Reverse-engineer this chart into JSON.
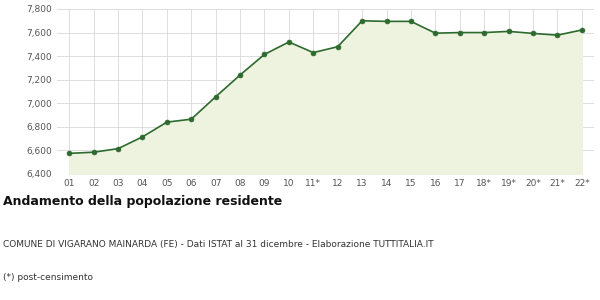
{
  "x_labels": [
    "01",
    "02",
    "03",
    "04",
    "05",
    "06",
    "07",
    "08",
    "09",
    "10",
    "11*",
    "12",
    "13",
    "14",
    "15",
    "16",
    "17",
    "18*",
    "19*",
    "20*",
    "21*",
    "22*"
  ],
  "y_values": [
    6575,
    6585,
    6615,
    6715,
    6840,
    6865,
    7055,
    7240,
    7415,
    7520,
    7430,
    7480,
    7700,
    7695,
    7695,
    7595,
    7600,
    7600,
    7610,
    7593,
    7578,
    7622
  ],
  "ylim": [
    6400,
    7800
  ],
  "yticks": [
    6400,
    6600,
    6800,
    7000,
    7200,
    7400,
    7600,
    7800
  ],
  "line_color": "#2d6a2d",
  "fill_color": "#eef3e0",
  "marker_color": "#2d6a2d",
  "bg_color": "#ffffff",
  "plot_bg_color": "#ffffff",
  "grid_color": "#d8d8d8",
  "title": "Andamento della popolazione residente",
  "subtitle": "COMUNE DI VIGARANO MAINARDA (FE) - Dati ISTAT al 31 dicembre - Elaborazione TUTTITALIA.IT",
  "footnote": "(*) post-censimento",
  "title_fontsize": 9,
  "subtitle_fontsize": 6.5,
  "footnote_fontsize": 6.5
}
